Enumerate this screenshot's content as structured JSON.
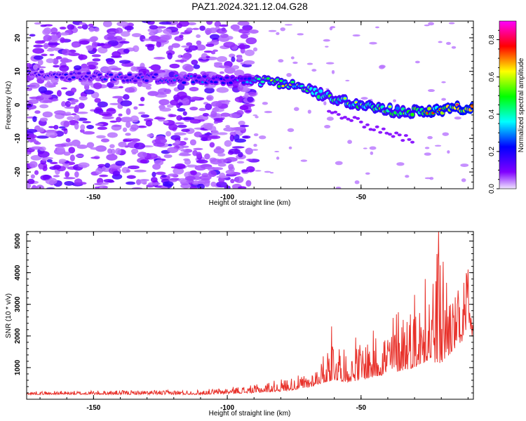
{
  "chart_data": [
    {
      "type": "heatmap",
      "title": "PAZ1.2024.321.12.04.G28",
      "xlabel": "Height of straight line (km)",
      "ylabel": "Frequency (Hz)",
      "xlim": [
        -175,
        -8
      ],
      "ylim": [
        -25,
        25
      ],
      "xticks": [
        "-150",
        "-100",
        "-50"
      ],
      "yticks": [
        "-20",
        "-10",
        "0",
        "10",
        "20"
      ],
      "colorbar": {
        "label": "Normalized spectral amplitude",
        "range": [
          0.0,
          0.9
        ],
        "ticks": [
          "0.0",
          "0.2",
          "0.4",
          "0.6",
          "0.8"
        ],
        "colormap": [
          "#f0e6ff",
          "#8000ff",
          "#0000ff",
          "#00ffff",
          "#00ff00",
          "#ffff00",
          "#ff0000",
          "#ff00ff"
        ]
      },
      "ridge": {
        "description_points_x": [
          -175,
          -150,
          -125,
          -110,
          -95,
          -85,
          -75,
          -65,
          -55,
          -45,
          -35,
          -25,
          -15,
          -8
        ],
        "frequency_y": [
          9,
          8.5,
          8,
          7.5,
          7,
          7,
          6,
          3,
          1,
          -1,
          -2,
          -2,
          -1,
          -1
        ],
        "peak_amplitude": [
          0.15,
          0.18,
          0.2,
          0.22,
          0.25,
          0.45,
          0.5,
          0.4,
          0.45,
          0.5,
          0.45,
          0.55,
          0.6,
          0.7
        ]
      }
    },
    {
      "type": "line",
      "xlabel": "Height of straight line (km)",
      "ylabel": "SNR (10 * v/v)",
      "xlim": [
        -175,
        -8
      ],
      "ylim": [
        0,
        5300
      ],
      "xticks": [
        "-150",
        "-100",
        "-50"
      ],
      "yticks": [
        "1000",
        "2000",
        "3000",
        "4000",
        "5000"
      ],
      "color": "#e8312a",
      "envelope_x": [
        -175,
        -140,
        -110,
        -90,
        -80,
        -70,
        -65,
        -60,
        -55,
        -50,
        -45,
        -40,
        -35,
        -30,
        -25,
        -20,
        -15,
        -10,
        -8
      ],
      "envelope_baseline": [
        150,
        150,
        150,
        200,
        250,
        350,
        500,
        600,
        550,
        600,
        700,
        800,
        900,
        1000,
        1200,
        1100,
        1600,
        2000,
        2000
      ],
      "envelope_peak": [
        250,
        280,
        300,
        450,
        650,
        800,
        1200,
        2300,
        1300,
        1900,
        2200,
        2400,
        3300,
        2900,
        3800,
        5350,
        3300,
        4100,
        2300
      ]
    }
  ]
}
